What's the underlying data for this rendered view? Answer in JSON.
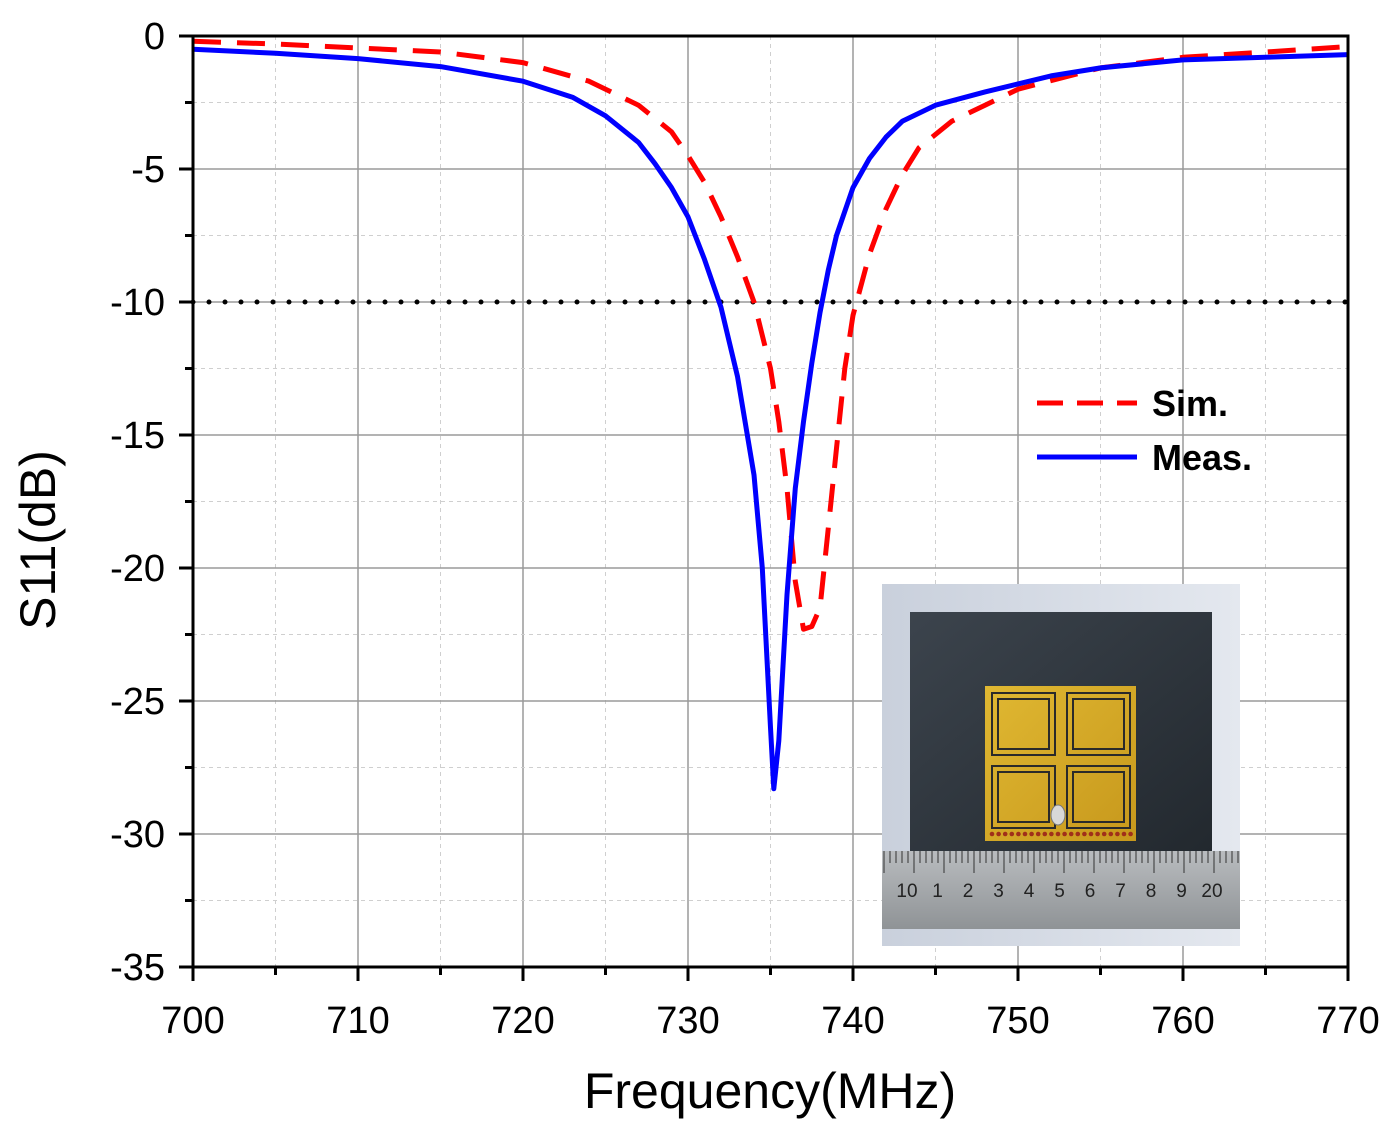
{
  "chart_data": {
    "type": "line",
    "title": "",
    "xlabel": "Frequency(MHz)",
    "ylabel": "S11(dB)",
    "xlim": [
      700,
      770
    ],
    "ylim": [
      -35,
      0
    ],
    "xticks": [
      700,
      710,
      720,
      730,
      740,
      750,
      760,
      770
    ],
    "yticks": [
      0,
      -5,
      -10,
      -15,
      -20,
      -25,
      -30,
      -35
    ],
    "grid": true,
    "legend_position": "right-middle",
    "reference_line": {
      "y": -10,
      "style": "dotted"
    },
    "series": [
      {
        "name": "Sim.",
        "color": "#ff0000",
        "style": "dashed",
        "x": [
          700,
          705,
          710,
          715,
          720,
          724,
          727,
          729,
          730,
          731,
          732,
          733,
          734,
          735,
          735.5,
          736,
          736.5,
          737,
          737.5,
          738,
          738.5,
          739,
          739.5,
          740,
          741,
          742,
          743,
          744,
          746,
          748,
          750,
          755,
          760,
          765,
          770
        ],
        "values": [
          -0.2,
          -0.3,
          -0.45,
          -0.6,
          -1.0,
          -1.7,
          -2.6,
          -3.6,
          -4.5,
          -5.5,
          -6.8,
          -8.3,
          -10.0,
          -12.5,
          -14.5,
          -17.0,
          -20.5,
          -22.3,
          -22.2,
          -21.5,
          -18.5,
          -15.5,
          -12.5,
          -10.5,
          -8.2,
          -6.5,
          -5.2,
          -4.2,
          -3.2,
          -2.6,
          -2.0,
          -1.2,
          -0.8,
          -0.6,
          -0.4
        ]
      },
      {
        "name": "Meas.",
        "color": "#0000ff",
        "style": "solid",
        "x": [
          700,
          705,
          710,
          715,
          720,
          723,
          725,
          727,
          728,
          729,
          730,
          731,
          732,
          733,
          734,
          734.5,
          735,
          735.2,
          735.5,
          736,
          736.5,
          737,
          737.5,
          738,
          738.5,
          739,
          740,
          741,
          742,
          743,
          745,
          748,
          750,
          752,
          755,
          760,
          765,
          770
        ],
        "values": [
          -0.5,
          -0.65,
          -0.85,
          -1.15,
          -1.7,
          -2.3,
          -3.0,
          -4.0,
          -4.8,
          -5.7,
          -6.8,
          -8.4,
          -10.2,
          -12.8,
          -16.5,
          -20.0,
          -26.0,
          -28.3,
          -26.5,
          -21.0,
          -17.0,
          -14.5,
          -12.3,
          -10.4,
          -8.8,
          -7.5,
          -5.7,
          -4.6,
          -3.8,
          -3.2,
          -2.6,
          -2.1,
          -1.8,
          -1.5,
          -1.2,
          -0.9,
          -0.8,
          -0.7
        ]
      }
    ]
  },
  "inset": {
    "description_icon": "antenna-photo-icon",
    "ruler_marks": [
      "10",
      "1",
      "2",
      "3",
      "4",
      "5",
      "6",
      "7",
      "8",
      "9",
      "20"
    ]
  }
}
